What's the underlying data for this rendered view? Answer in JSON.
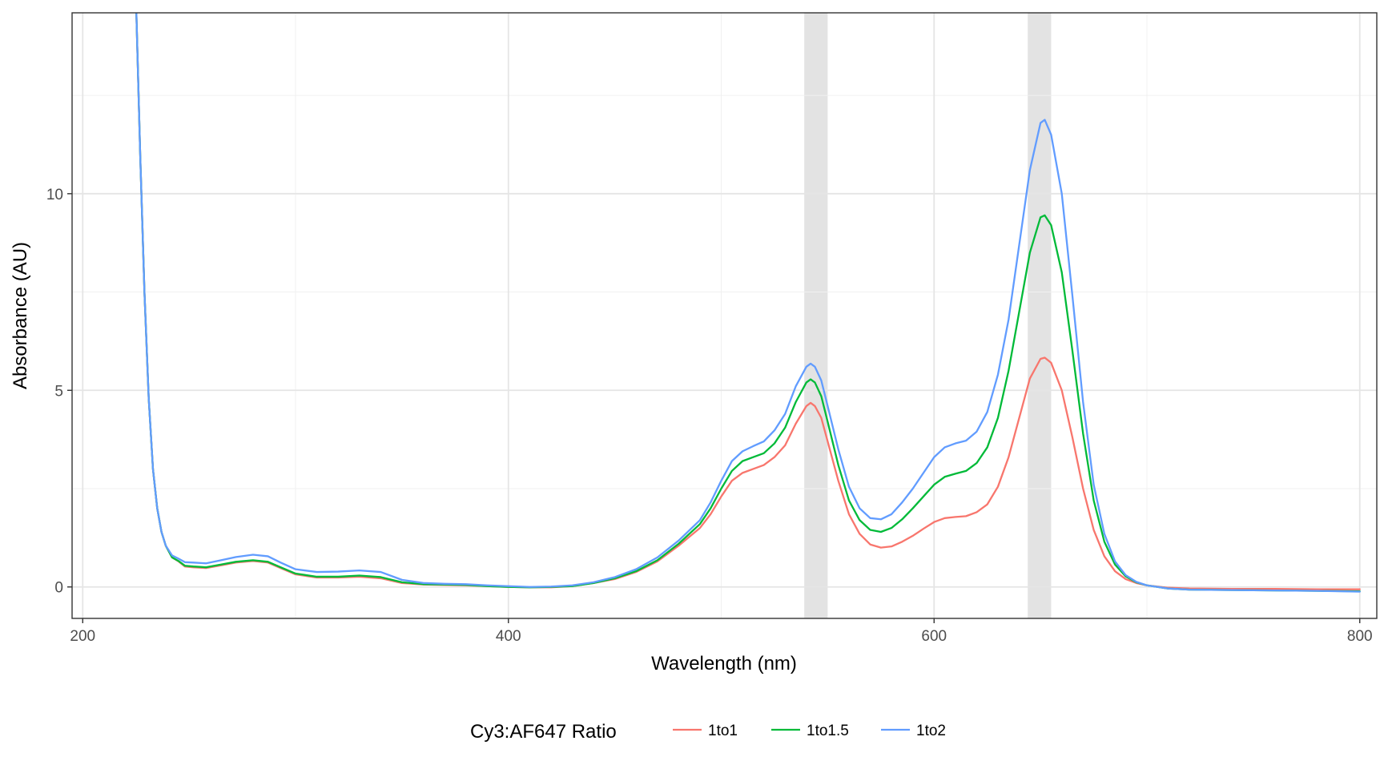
{
  "chart_data": {
    "type": "line",
    "xlabel": "Wavelength (nm)",
    "ylabel": "Absorbance (AU)",
    "xlim": [
      195,
      808
    ],
    "ylim": [
      -0.8,
      14.6
    ],
    "x_ticks": [
      200,
      400,
      600,
      800
    ],
    "x_minor_ticks": [
      300,
      500,
      700
    ],
    "y_ticks": [
      0,
      5,
      10
    ],
    "y_minor_ticks": [
      2.5,
      7.5,
      12.5
    ],
    "grid": true,
    "highlight_bands": [
      {
        "x_start": 539,
        "x_end": 550
      },
      {
        "x_start": 644,
        "x_end": 655
      }
    ],
    "legend": {
      "title": "Cy3:AF647 Ratio",
      "position": "bottom"
    },
    "series": [
      {
        "name": "1to1",
        "color": "#F8766D",
        "points": [
          [
            225,
            15.0
          ],
          [
            227,
            11.0
          ],
          [
            229,
            7.5
          ],
          [
            231,
            4.8
          ],
          [
            233,
            3.0
          ],
          [
            235,
            2.0
          ],
          [
            237,
            1.4
          ],
          [
            239,
            1.05
          ],
          [
            242,
            0.75
          ],
          [
            245,
            0.65
          ],
          [
            248,
            0.52
          ],
          [
            252,
            0.5
          ],
          [
            258,
            0.48
          ],
          [
            265,
            0.55
          ],
          [
            272,
            0.62
          ],
          [
            280,
            0.66
          ],
          [
            287,
            0.62
          ],
          [
            293,
            0.48
          ],
          [
            300,
            0.32
          ],
          [
            310,
            0.24
          ],
          [
            320,
            0.24
          ],
          [
            330,
            0.26
          ],
          [
            340,
            0.22
          ],
          [
            350,
            0.1
          ],
          [
            360,
            0.06
          ],
          [
            370,
            0.05
          ],
          [
            380,
            0.04
          ],
          [
            390,
            0.02
          ],
          [
            400,
            0.0
          ],
          [
            410,
            -0.01
          ],
          [
            420,
            -0.01
          ],
          [
            430,
            0.02
          ],
          [
            440,
            0.1
          ],
          [
            450,
            0.2
          ],
          [
            460,
            0.38
          ],
          [
            470,
            0.65
          ],
          [
            480,
            1.05
          ],
          [
            490,
            1.5
          ],
          [
            495,
            1.85
          ],
          [
            500,
            2.3
          ],
          [
            505,
            2.7
          ],
          [
            510,
            2.9
          ],
          [
            515,
            3.0
          ],
          [
            520,
            3.1
          ],
          [
            525,
            3.3
          ],
          [
            530,
            3.6
          ],
          [
            535,
            4.15
          ],
          [
            540,
            4.6
          ],
          [
            542,
            4.68
          ],
          [
            544,
            4.6
          ],
          [
            547,
            4.3
          ],
          [
            550,
            3.7
          ],
          [
            555,
            2.7
          ],
          [
            560,
            1.85
          ],
          [
            565,
            1.35
          ],
          [
            570,
            1.08
          ],
          [
            575,
            1.0
          ],
          [
            580,
            1.03
          ],
          [
            585,
            1.15
          ],
          [
            590,
            1.3
          ],
          [
            595,
            1.48
          ],
          [
            600,
            1.65
          ],
          [
            605,
            1.75
          ],
          [
            610,
            1.78
          ],
          [
            615,
            1.8
          ],
          [
            620,
            1.9
          ],
          [
            625,
            2.1
          ],
          [
            630,
            2.55
          ],
          [
            635,
            3.3
          ],
          [
            640,
            4.3
          ],
          [
            645,
            5.3
          ],
          [
            650,
            5.8
          ],
          [
            652,
            5.83
          ],
          [
            655,
            5.7
          ],
          [
            660,
            5.0
          ],
          [
            665,
            3.8
          ],
          [
            670,
            2.5
          ],
          [
            675,
            1.45
          ],
          [
            680,
            0.78
          ],
          [
            685,
            0.4
          ],
          [
            690,
            0.2
          ],
          [
            695,
            0.1
          ],
          [
            700,
            0.04
          ],
          [
            710,
            -0.02
          ],
          [
            720,
            -0.04
          ],
          [
            740,
            -0.05
          ],
          [
            760,
            -0.05
          ],
          [
            780,
            -0.06
          ],
          [
            800,
            -0.06
          ]
        ]
      },
      {
        "name": "1to1.5",
        "color": "#00BA38",
        "points": [
          [
            225,
            15.0
          ],
          [
            227,
            11.0
          ],
          [
            229,
            7.5
          ],
          [
            231,
            4.8
          ],
          [
            233,
            3.0
          ],
          [
            235,
            2.0
          ],
          [
            237,
            1.4
          ],
          [
            239,
            1.05
          ],
          [
            242,
            0.75
          ],
          [
            245,
            0.66
          ],
          [
            248,
            0.54
          ],
          [
            252,
            0.52
          ],
          [
            258,
            0.5
          ],
          [
            265,
            0.57
          ],
          [
            272,
            0.64
          ],
          [
            280,
            0.68
          ],
          [
            287,
            0.64
          ],
          [
            293,
            0.5
          ],
          [
            300,
            0.34
          ],
          [
            310,
            0.26
          ],
          [
            320,
            0.26
          ],
          [
            330,
            0.29
          ],
          [
            340,
            0.25
          ],
          [
            350,
            0.12
          ],
          [
            360,
            0.07
          ],
          [
            370,
            0.06
          ],
          [
            380,
            0.05
          ],
          [
            390,
            0.02
          ],
          [
            400,
            0.0
          ],
          [
            410,
            -0.01
          ],
          [
            420,
            0.0
          ],
          [
            430,
            0.02
          ],
          [
            440,
            0.1
          ],
          [
            450,
            0.22
          ],
          [
            460,
            0.4
          ],
          [
            470,
            0.68
          ],
          [
            480,
            1.1
          ],
          [
            490,
            1.6
          ],
          [
            495,
            2.0
          ],
          [
            500,
            2.5
          ],
          [
            505,
            2.95
          ],
          [
            510,
            3.2
          ],
          [
            515,
            3.3
          ],
          [
            520,
            3.4
          ],
          [
            525,
            3.65
          ],
          [
            530,
            4.05
          ],
          [
            535,
            4.7
          ],
          [
            540,
            5.2
          ],
          [
            542,
            5.28
          ],
          [
            544,
            5.2
          ],
          [
            547,
            4.85
          ],
          [
            550,
            4.2
          ],
          [
            555,
            3.1
          ],
          [
            560,
            2.2
          ],
          [
            565,
            1.7
          ],
          [
            570,
            1.45
          ],
          [
            575,
            1.4
          ],
          [
            580,
            1.5
          ],
          [
            585,
            1.72
          ],
          [
            590,
            2.0
          ],
          [
            595,
            2.3
          ],
          [
            600,
            2.6
          ],
          [
            605,
            2.8
          ],
          [
            610,
            2.88
          ],
          [
            615,
            2.95
          ],
          [
            620,
            3.15
          ],
          [
            625,
            3.55
          ],
          [
            630,
            4.3
          ],
          [
            635,
            5.5
          ],
          [
            640,
            7.0
          ],
          [
            645,
            8.5
          ],
          [
            650,
            9.4
          ],
          [
            652,
            9.45
          ],
          [
            655,
            9.2
          ],
          [
            660,
            8.0
          ],
          [
            665,
            6.0
          ],
          [
            670,
            3.9
          ],
          [
            675,
            2.2
          ],
          [
            680,
            1.15
          ],
          [
            685,
            0.57
          ],
          [
            690,
            0.27
          ],
          [
            695,
            0.12
          ],
          [
            700,
            0.04
          ],
          [
            710,
            -0.04
          ],
          [
            720,
            -0.07
          ],
          [
            740,
            -0.08
          ],
          [
            760,
            -0.09
          ],
          [
            780,
            -0.1
          ],
          [
            800,
            -0.11
          ]
        ]
      },
      {
        "name": "1to2",
        "color": "#619CFF",
        "points": [
          [
            225,
            15.0
          ],
          [
            227,
            11.0
          ],
          [
            229,
            7.5
          ],
          [
            231,
            4.8
          ],
          [
            233,
            3.0
          ],
          [
            235,
            2.0
          ],
          [
            237,
            1.4
          ],
          [
            239,
            1.05
          ],
          [
            242,
            0.8
          ],
          [
            245,
            0.72
          ],
          [
            248,
            0.63
          ],
          [
            252,
            0.62
          ],
          [
            258,
            0.6
          ],
          [
            265,
            0.68
          ],
          [
            272,
            0.76
          ],
          [
            280,
            0.82
          ],
          [
            287,
            0.78
          ],
          [
            293,
            0.62
          ],
          [
            300,
            0.45
          ],
          [
            310,
            0.38
          ],
          [
            320,
            0.39
          ],
          [
            330,
            0.42
          ],
          [
            340,
            0.38
          ],
          [
            350,
            0.18
          ],
          [
            360,
            0.1
          ],
          [
            370,
            0.08
          ],
          [
            380,
            0.07
          ],
          [
            390,
            0.04
          ],
          [
            400,
            0.02
          ],
          [
            410,
            0.0
          ],
          [
            420,
            0.01
          ],
          [
            430,
            0.04
          ],
          [
            440,
            0.12
          ],
          [
            450,
            0.25
          ],
          [
            460,
            0.45
          ],
          [
            470,
            0.75
          ],
          [
            480,
            1.18
          ],
          [
            490,
            1.7
          ],
          [
            495,
            2.15
          ],
          [
            500,
            2.7
          ],
          [
            505,
            3.2
          ],
          [
            510,
            3.45
          ],
          [
            515,
            3.58
          ],
          [
            520,
            3.7
          ],
          [
            525,
            3.98
          ],
          [
            530,
            4.4
          ],
          [
            535,
            5.1
          ],
          [
            540,
            5.6
          ],
          [
            542,
            5.68
          ],
          [
            544,
            5.6
          ],
          [
            547,
            5.25
          ],
          [
            550,
            4.6
          ],
          [
            555,
            3.5
          ],
          [
            560,
            2.55
          ],
          [
            565,
            2.0
          ],
          [
            570,
            1.75
          ],
          [
            575,
            1.72
          ],
          [
            580,
            1.85
          ],
          [
            585,
            2.15
          ],
          [
            590,
            2.5
          ],
          [
            595,
            2.9
          ],
          [
            600,
            3.3
          ],
          [
            605,
            3.55
          ],
          [
            610,
            3.65
          ],
          [
            615,
            3.72
          ],
          [
            620,
            3.95
          ],
          [
            625,
            4.45
          ],
          [
            630,
            5.4
          ],
          [
            635,
            6.8
          ],
          [
            640,
            8.7
          ],
          [
            645,
            10.6
          ],
          [
            650,
            11.8
          ],
          [
            652,
            11.88
          ],
          [
            655,
            11.5
          ],
          [
            660,
            10.0
          ],
          [
            665,
            7.4
          ],
          [
            670,
            4.7
          ],
          [
            675,
            2.6
          ],
          [
            680,
            1.35
          ],
          [
            685,
            0.65
          ],
          [
            690,
            0.3
          ],
          [
            695,
            0.13
          ],
          [
            700,
            0.04
          ],
          [
            710,
            -0.04
          ],
          [
            720,
            -0.07
          ],
          [
            740,
            -0.08
          ],
          [
            760,
            -0.09
          ],
          [
            780,
            -0.1
          ],
          [
            800,
            -0.12
          ]
        ]
      }
    ]
  }
}
